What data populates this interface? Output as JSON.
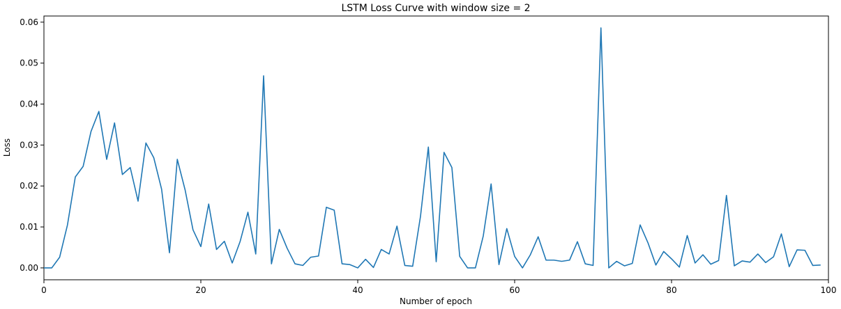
{
  "chart_data": {
    "type": "line",
    "title": "LSTM Loss Curve with window size = 2",
    "xlabel": "Number of epoch",
    "ylabel": "Loss",
    "xlim": [
      0,
      100
    ],
    "ylim": [
      -0.0029,
      0.0615
    ],
    "x_ticks": [
      0,
      20,
      40,
      60,
      80,
      100
    ],
    "y_ticks": [
      0.0,
      0.01,
      0.02,
      0.03,
      0.04,
      0.05,
      0.06
    ],
    "x_tick_labels": [
      "0",
      "20",
      "40",
      "60",
      "80",
      "100"
    ],
    "y_tick_labels": [
      "0.00",
      "0.01",
      "0.02",
      "0.03",
      "0.04",
      "0.05",
      "0.06"
    ],
    "grid": false,
    "line_color": "#1f77b4",
    "series": [
      {
        "x": [
          0,
          1,
          2,
          3,
          4,
          5,
          6,
          7,
          8,
          9,
          10,
          11,
          12,
          13,
          14,
          15,
          16,
          17,
          18,
          19,
          20,
          21,
          22,
          23,
          24,
          25,
          26,
          27,
          28,
          29,
          30,
          31,
          32,
          33,
          34,
          35,
          36,
          37,
          38,
          39,
          40,
          41,
          42,
          43,
          44,
          45,
          46,
          47,
          48,
          49,
          50,
          51,
          52,
          53,
          54,
          55,
          56,
          57,
          58,
          59,
          60,
          61,
          62,
          63,
          64,
          65,
          66,
          67,
          68,
          69,
          70,
          71,
          72,
          73,
          74,
          75,
          76,
          77,
          78,
          79,
          80,
          81,
          82,
          83,
          84,
          85,
          86,
          87,
          88,
          89,
          90,
          91,
          92,
          93,
          94,
          95,
          96,
          97,
          98,
          99
        ],
        "values": [
          0.0,
          0.0,
          0.0026,
          0.0105,
          0.0222,
          0.0248,
          0.0333,
          0.0382,
          0.0265,
          0.0354,
          0.0228,
          0.0245,
          0.0163,
          0.0305,
          0.0269,
          0.0192,
          0.0037,
          0.0265,
          0.019,
          0.0093,
          0.0052,
          0.0156,
          0.0045,
          0.0065,
          0.0012,
          0.0064,
          0.0136,
          0.0034,
          0.0469,
          0.001,
          0.0094,
          0.0048,
          0.001,
          0.0006,
          0.0026,
          0.0029,
          0.0148,
          0.0141,
          0.001,
          0.0008,
          0.0,
          0.0021,
          0.0001,
          0.0045,
          0.0034,
          0.0102,
          0.0006,
          0.0004,
          0.0126,
          0.0295,
          0.0015,
          0.0282,
          0.0245,
          0.0028,
          0.0,
          0.0,
          0.0078,
          0.0205,
          0.0008,
          0.0096,
          0.0028,
          0.0,
          0.0032,
          0.0076,
          0.0019,
          0.0019,
          0.0016,
          0.0019,
          0.0064,
          0.001,
          0.0006,
          0.0586,
          0.0,
          0.0016,
          0.0005,
          0.0011,
          0.0105,
          0.0061,
          0.0007,
          0.004,
          0.0022,
          0.0002,
          0.0079,
          0.0012,
          0.0032,
          0.0009,
          0.0018,
          0.0177,
          0.0005,
          0.0017,
          0.0014,
          0.0034,
          0.0013,
          0.0027,
          0.0083,
          0.0003,
          0.0044,
          0.0043,
          0.0006,
          0.0007
        ]
      }
    ]
  }
}
